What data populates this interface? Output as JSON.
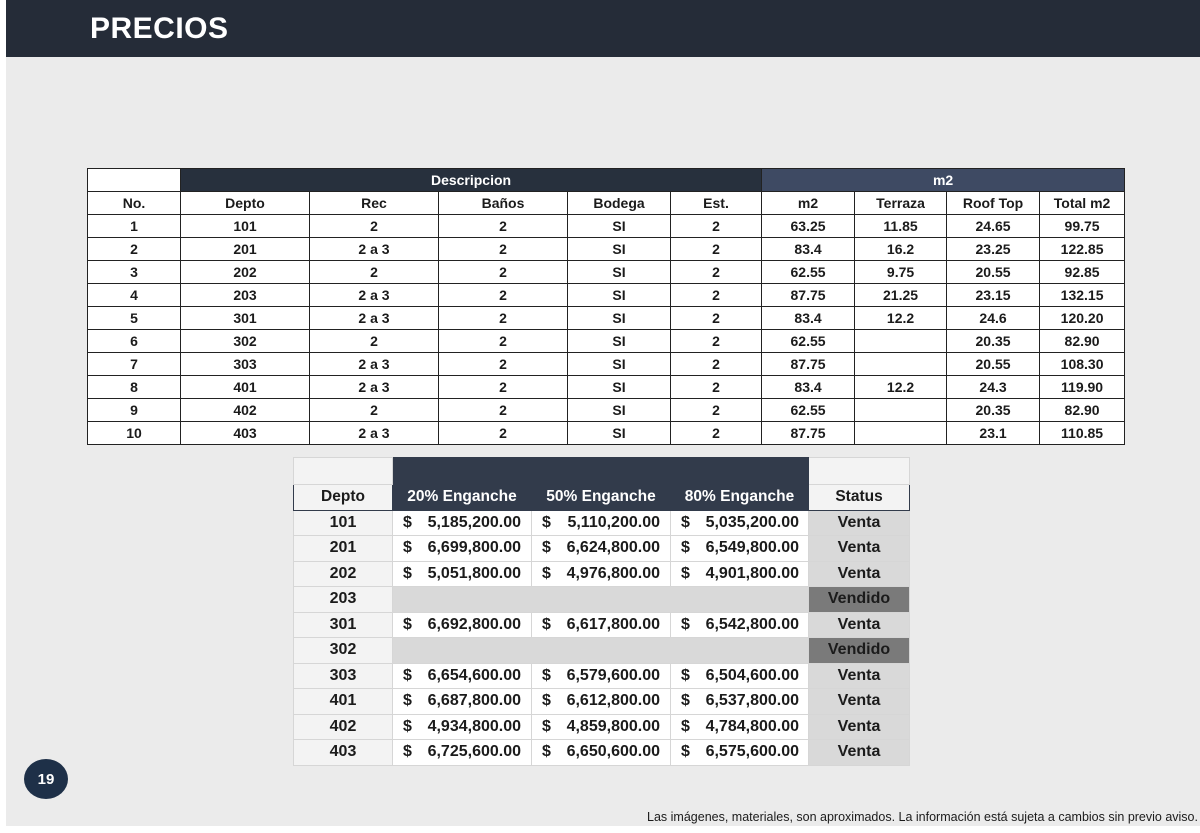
{
  "header": {
    "title": "PRECIOS"
  },
  "specs_table": {
    "group_headers": {
      "descripcion": "Descripcion",
      "m2": "m2"
    },
    "columns": [
      "No.",
      "Depto",
      "Rec",
      "Baños",
      "Bodega",
      "Est.",
      "m2",
      "Terraza",
      "Roof Top",
      "Total m2"
    ],
    "rows": [
      [
        "1",
        "101",
        "2",
        "2",
        "SI",
        "2",
        "63.25",
        "11.85",
        "24.65",
        "99.75"
      ],
      [
        "2",
        "201",
        "2 a 3",
        "2",
        "SI",
        "2",
        "83.4",
        "16.2",
        "23.25",
        "122.85"
      ],
      [
        "3",
        "202",
        "2",
        "2",
        "SI",
        "2",
        "62.55",
        "9.75",
        "20.55",
        "92.85"
      ],
      [
        "4",
        "203",
        "2 a 3",
        "2",
        "SI",
        "2",
        "87.75",
        "21.25",
        "23.15",
        "132.15"
      ],
      [
        "5",
        "301",
        "2 a 3",
        "2",
        "SI",
        "2",
        "83.4",
        "12.2",
        "24.6",
        "120.20"
      ],
      [
        "6",
        "302",
        "2",
        "2",
        "SI",
        "2",
        "62.55",
        "",
        "20.35",
        "82.90"
      ],
      [
        "7",
        "303",
        "2 a 3",
        "2",
        "SI",
        "2",
        "87.75",
        "",
        "20.55",
        "108.30"
      ],
      [
        "8",
        "401",
        "2 a 3",
        "2",
        "SI",
        "2",
        "83.4",
        "12.2",
        "24.3",
        "119.90"
      ],
      [
        "9",
        "402",
        "2",
        "2",
        "SI",
        "2",
        "62.55",
        "",
        "20.35",
        "82.90"
      ],
      [
        "10",
        "403",
        "2 a 3",
        "2",
        "SI",
        "2",
        "87.75",
        "",
        "23.1",
        "110.85"
      ]
    ]
  },
  "prices_table": {
    "columns": [
      "Depto",
      "20% Enganche",
      "50% Enganche",
      "80% Enganche",
      "Status"
    ],
    "currency": "$",
    "rows": [
      {
        "depto": "101",
        "p20": "5,185,200.00",
        "p50": "5,110,200.00",
        "p80": "5,035,200.00",
        "status": "Venta"
      },
      {
        "depto": "201",
        "p20": "6,699,800.00",
        "p50": "6,624,800.00",
        "p80": "6,549,800.00",
        "status": "Venta"
      },
      {
        "depto": "202",
        "p20": "5,051,800.00",
        "p50": "4,976,800.00",
        "p80": "4,901,800.00",
        "status": "Venta"
      },
      {
        "depto": "203",
        "p20": "",
        "p50": "",
        "p80": "",
        "status": "Vendido"
      },
      {
        "depto": "301",
        "p20": "6,692,800.00",
        "p50": "6,617,800.00",
        "p80": "6,542,800.00",
        "status": "Venta"
      },
      {
        "depto": "302",
        "p20": "",
        "p50": "",
        "p80": "",
        "status": "Vendido"
      },
      {
        "depto": "303",
        "p20": "6,654,600.00",
        "p50": "6,579,600.00",
        "p80": "6,504,600.00",
        "status": "Venta"
      },
      {
        "depto": "401",
        "p20": "6,687,800.00",
        "p50": "6,612,800.00",
        "p80": "6,537,800.00",
        "status": "Venta"
      },
      {
        "depto": "402",
        "p20": "4,934,800.00",
        "p50": "4,859,800.00",
        "p80": "4,784,800.00",
        "status": "Venta"
      },
      {
        "depto": "403",
        "p20": "6,725,600.00",
        "p50": "6,650,600.00",
        "p80": "6,575,600.00",
        "status": "Venta"
      }
    ]
  },
  "footer": {
    "page_number": "19",
    "disclaimer": "Las imágenes, materiales, son aproximados. La información está sujeta a cambios sin previo aviso."
  },
  "colors": {
    "header_bar": "#252c38",
    "group_dark": "#27303d",
    "group_blue": "#3e4a63",
    "sold": "#7a7a7a",
    "badge": "#1e3048"
  }
}
